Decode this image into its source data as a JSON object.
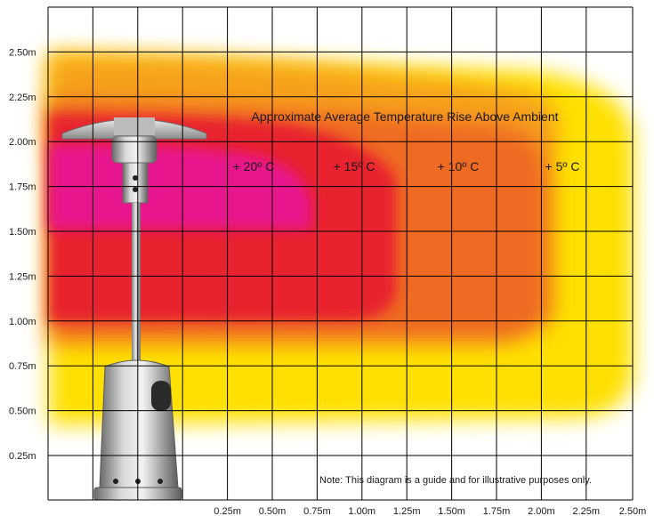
{
  "chart_data": {
    "type": "heatmap",
    "title": "Approximate Average Temperature Rise Above Ambient",
    "x_ticks": [
      "0.25m",
      "0.50m",
      "0.75m",
      "1.00m",
      "1.25m",
      "1.50m",
      "1.75m",
      "2.00m",
      "2.25m",
      "2.50m"
    ],
    "y_ticks": [
      "2.50m",
      "2.25m",
      "2.00m",
      "1.75m",
      "1.50m",
      "1.25m",
      "1.00m",
      "0.75m",
      "0.50m",
      "0.25m"
    ],
    "zones": [
      {
        "label": "+ 20º C",
        "color": "#e8168c"
      },
      {
        "label": "+ 15º C",
        "color": "#e8202e"
      },
      {
        "label": "+ 10º C",
        "color": "#ef6a22"
      },
      {
        "label": "+ 5º C",
        "color": "#ffe000"
      }
    ],
    "note": "Note: This diagram is a guide and for illustrative purposes only.",
    "grid": true
  },
  "colors": {
    "grid": "#000000",
    "heater_metal": "#a9a9a9"
  },
  "icons": [
    "patio-heater-image"
  ]
}
